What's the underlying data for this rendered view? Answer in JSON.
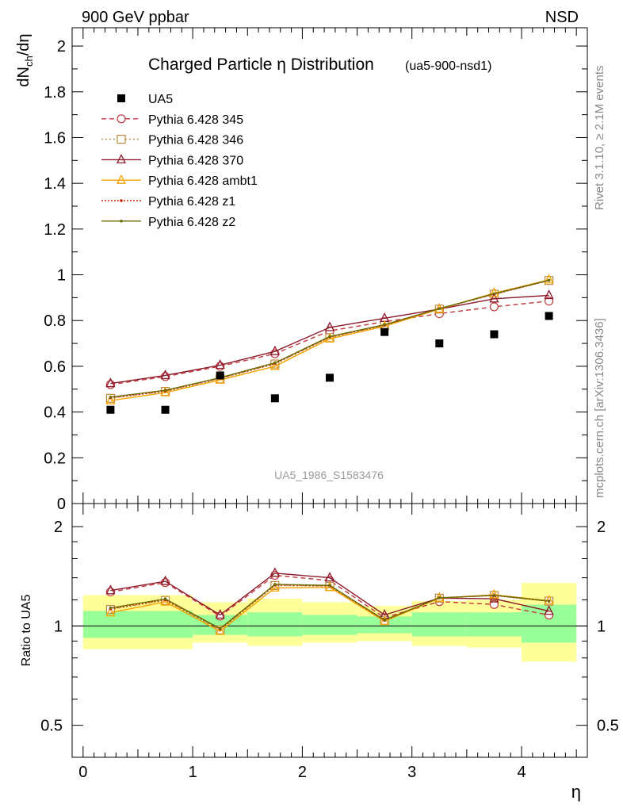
{
  "header": {
    "left": "900 GeV ppbar",
    "right": "NSD"
  },
  "side_labels": {
    "rivet": "Rivet 3.1.10, ≥ 2.1M events",
    "mcplots": "mcplots.cern.ch [arXiv:1306.3436]"
  },
  "chart_data": {
    "type": "line",
    "title": "Charged Particle η Distribution",
    "title_suffix": "(ua5-900-nsd1)",
    "watermark": "UA5_1986_S1583476",
    "xlabel": "η",
    "ylabel": "dN_ch/dη",
    "ratio_ylabel": "Ratio to UA5",
    "xlim": [
      -0.1,
      4.6
    ],
    "ylim": [
      0,
      2.08
    ],
    "ratio_ylim": [
      0.4,
      2.35
    ],
    "x_ticks": [
      "0",
      "1",
      "2",
      "3",
      "4"
    ],
    "y_ticks": [
      "0",
      "0.2",
      "0.4",
      "0.6",
      "0.8",
      "1",
      "1.2",
      "1.4",
      "1.6",
      "1.8",
      "2"
    ],
    "ratio_ticks": [
      "0.5",
      "1",
      "2"
    ],
    "x": [
      0.25,
      0.75,
      1.25,
      1.75,
      2.25,
      2.75,
      3.25,
      3.75,
      4.25
    ],
    "data": {
      "name": "UA5",
      "values": [
        0.41,
        0.41,
        0.56,
        0.46,
        0.55,
        0.75,
        0.7,
        0.74,
        0.82
      ]
    },
    "bins": [
      {
        "lo": 0.0,
        "hi": 1.0,
        "yellow": [
          0.85,
          1.24
        ],
        "green": [
          0.92,
          1.11
        ]
      },
      {
        "lo": 1.0,
        "hi": 1.5,
        "yellow": [
          0.89,
          1.18
        ],
        "green": [
          0.94,
          1.08
        ]
      },
      {
        "lo": 1.5,
        "hi": 2.0,
        "yellow": [
          0.87,
          1.21
        ],
        "green": [
          0.93,
          1.1
        ]
      },
      {
        "lo": 2.0,
        "hi": 2.5,
        "yellow": [
          0.89,
          1.18
        ],
        "green": [
          0.94,
          1.08
        ]
      },
      {
        "lo": 2.5,
        "hi": 3.0,
        "yellow": [
          0.9,
          1.15
        ],
        "green": [
          0.95,
          1.07
        ]
      },
      {
        "lo": 3.0,
        "hi": 3.5,
        "yellow": [
          0.87,
          1.19
        ],
        "green": [
          0.93,
          1.1
        ]
      },
      {
        "lo": 3.5,
        "hi": 4.0,
        "yellow": [
          0.86,
          1.2
        ],
        "green": [
          0.93,
          1.1
        ]
      },
      {
        "lo": 4.0,
        "hi": 4.5,
        "yellow": [
          0.78,
          1.35
        ],
        "green": [
          0.89,
          1.16
        ]
      }
    ],
    "series": [
      {
        "name": "Pythia 6.428 345",
        "color": "#c0363c",
        "dash": "6,4",
        "marker": "circle-open",
        "values": [
          0.52,
          0.555,
          0.6,
          0.655,
          0.755,
          0.795,
          0.83,
          0.86,
          0.885
        ]
      },
      {
        "name": "Pythia 6.428 346",
        "color": "#b98a3e",
        "dash": "2,3",
        "marker": "square-open",
        "values": [
          0.46,
          0.49,
          0.545,
          0.61,
          0.725,
          0.78,
          0.85,
          0.915,
          0.975
        ]
      },
      {
        "name": "Pythia 6.428 370",
        "color": "#8b1a2b",
        "dash": "",
        "marker": "triangle-open",
        "values": [
          0.525,
          0.56,
          0.605,
          0.665,
          0.77,
          0.81,
          0.85,
          0.895,
          0.91
        ]
      },
      {
        "name": "Pythia 6.428 ambt1",
        "color": "#f5a300",
        "dash": "",
        "marker": "triangle-open",
        "values": [
          0.45,
          0.485,
          0.54,
          0.6,
          0.72,
          0.775,
          0.85,
          0.92,
          0.978
        ]
      },
      {
        "name": "Pythia 6.428 z1",
        "color": "#cc2200",
        "dash": "2,2",
        "marker": "dot",
        "values": [
          0.462,
          0.492,
          0.548,
          0.612,
          0.728,
          0.78,
          0.852,
          0.915,
          0.975
        ]
      },
      {
        "name": "Pythia 6.428 z2",
        "color": "#6b6b00",
        "dash": "",
        "marker": "dot",
        "values": [
          0.465,
          0.495,
          0.55,
          0.615,
          0.73,
          0.782,
          0.852,
          0.917,
          0.976
        ]
      }
    ]
  }
}
